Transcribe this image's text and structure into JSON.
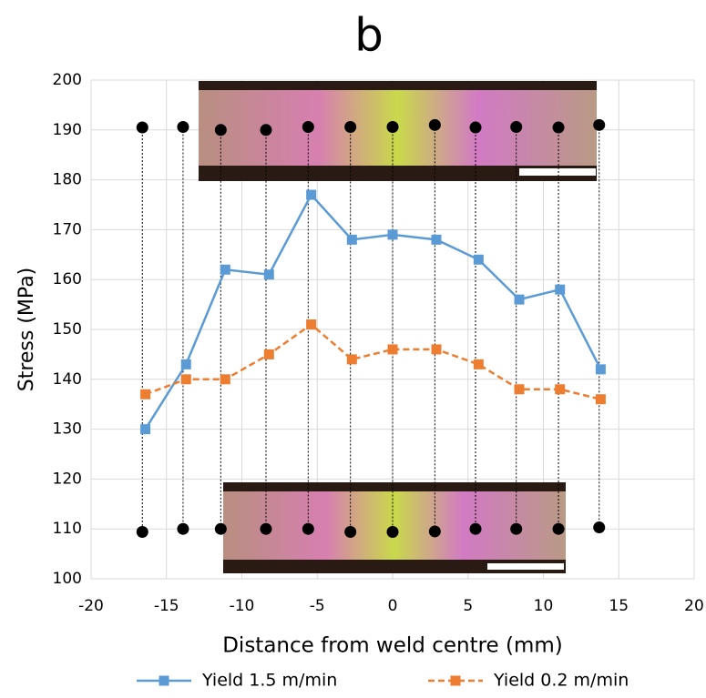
{
  "chart_data": {
    "type": "line",
    "title": "b",
    "x_label": "Distance from weld centre (mm)",
    "y_label": "Stress (MPa)",
    "x": [
      -16.4,
      -13.7,
      -11.1,
      -8.2,
      -5.4,
      -2.7,
      0,
      2.9,
      5.7,
      8.4,
      11.1,
      13.8
    ],
    "series": [
      {
        "name": "Yield 1.5 m/min",
        "color": "#5b9bd5",
        "dashed": false,
        "values": [
          130,
          143,
          162,
          161,
          177,
          168,
          169,
          168,
          164,
          156,
          158,
          142
        ]
      },
      {
        "name": "Yield 0.2 m/min",
        "color": "#ed7d31",
        "dashed": true,
        "values": [
          137,
          140,
          140,
          145,
          151,
          144,
          146,
          146,
          143,
          138,
          138,
          136
        ]
      }
    ],
    "markers": [
      {
        "color": "#000000",
        "x": [
          -16.6,
          -13.9,
          -11.4,
          -8.4,
          -5.6,
          -2.8,
          0,
          2.8,
          5.5,
          8.2,
          11,
          13.7
        ],
        "values": [
          190.5,
          190.6,
          190,
          190,
          190.6,
          190.6,
          190.6,
          191,
          190.5,
          190.6,
          190.5,
          191
        ]
      },
      {
        "color": "#000000",
        "x": [
          -16.6,
          -13.9,
          -11.4,
          -8.4,
          -5.6,
          -2.8,
          0,
          2.8,
          5.5,
          8.2,
          11,
          13.7
        ],
        "values": [
          109.4,
          110,
          110,
          110,
          110,
          109.4,
          109.4,
          109.5,
          110,
          110,
          110,
          110.3
        ]
      }
    ],
    "xlim": [
      -20,
      20
    ],
    "xticks": [
      -20,
      -15,
      -10,
      -5,
      0,
      5,
      10,
      15,
      20
    ],
    "ylim": [
      100,
      200
    ],
    "yticks": [
      100,
      110,
      120,
      130,
      140,
      150,
      160,
      170,
      180,
      190,
      200
    ],
    "grid": true
  }
}
